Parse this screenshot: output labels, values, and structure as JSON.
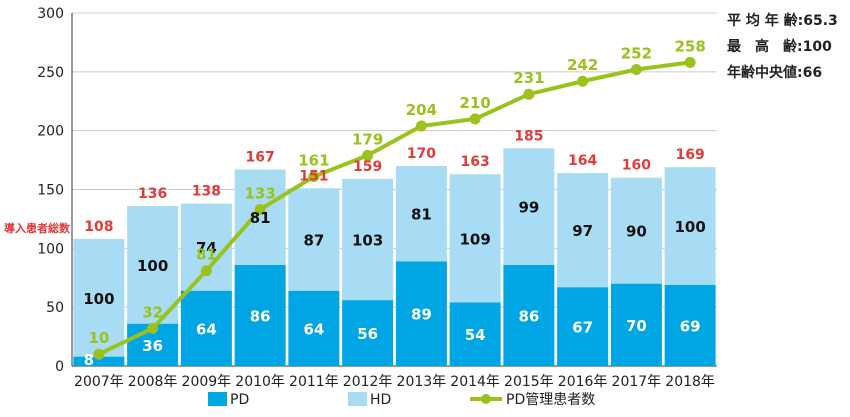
{
  "chart_data": {
    "type": "bar",
    "stacked": true,
    "categories": [
      "2007年",
      "2008年",
      "2009年",
      "2010年",
      "2011年",
      "2012年",
      "2013年",
      "2014年",
      "2015年",
      "2016年",
      "2017年",
      "2018年"
    ],
    "series": [
      {
        "name": "PD",
        "values": [
          8,
          36,
          64,
          86,
          64,
          56,
          89,
          54,
          86,
          67,
          70,
          69
        ],
        "color": "#00a5e3"
      },
      {
        "name": "HD",
        "values": [
          100,
          100,
          74,
          81,
          87,
          103,
          81,
          109,
          99,
          97,
          90,
          100
        ],
        "color": "#a8dcf5"
      }
    ],
    "totals": {
      "name": "導入患者総数",
      "values": [
        108,
        136,
        138,
        167,
        151,
        159,
        170,
        163,
        185,
        164,
        160,
        169
      ],
      "color": "#e23b3b"
    },
    "line_series": {
      "name": "PD管理患者数",
      "values": [
        10,
        32,
        81,
        133,
        161,
        179,
        204,
        210,
        231,
        242,
        252,
        258
      ],
      "color": "#99c31c"
    },
    "ylim": [
      0,
      300
    ],
    "yticks": [
      0,
      50,
      100,
      150,
      200,
      250,
      300
    ],
    "grid": true,
    "legend_position": "bottom"
  },
  "stats": {
    "mean_age": "平 均 年 齢:65.3",
    "max_age": "最　高　齢:100",
    "median_age": "年齢中央値:66"
  },
  "totals_label": "導入患者総数"
}
